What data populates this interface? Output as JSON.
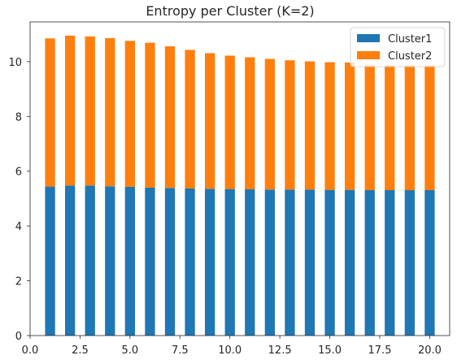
{
  "chart_data": {
    "type": "bar",
    "stacked": true,
    "title": "Entropy per Cluster (K=2)",
    "xlabel": "",
    "ylabel": "",
    "x": [
      1,
      2,
      3,
      4,
      5,
      6,
      7,
      8,
      9,
      10,
      11,
      12,
      13,
      14,
      15,
      16,
      17,
      18,
      19,
      20
    ],
    "xlim": [
      0,
      21
    ],
    "ylim": [
      0,
      11.45
    ],
    "xticks": [
      "0.0",
      "2.5",
      "5.0",
      "7.5",
      "10.0",
      "12.5",
      "15.0",
      "17.5",
      "20.0"
    ],
    "yticks": [
      "0",
      "2",
      "4",
      "6",
      "8",
      "10"
    ],
    "grid": false,
    "legend_position": "top-right",
    "series": [
      {
        "name": "Cluster1",
        "color": "#1f77b4",
        "values": [
          5.44,
          5.48,
          5.48,
          5.45,
          5.43,
          5.4,
          5.39,
          5.37,
          5.36,
          5.35,
          5.34,
          5.33,
          5.33,
          5.33,
          5.32,
          5.32,
          5.31,
          5.31,
          5.31,
          5.31
        ]
      },
      {
        "name": "Cluster2",
        "color": "#ff7f0e",
        "values": [
          5.41,
          5.47,
          5.44,
          5.41,
          5.33,
          5.29,
          5.17,
          5.06,
          4.95,
          4.87,
          4.82,
          4.77,
          4.72,
          4.68,
          4.66,
          4.65,
          4.58,
          4.57,
          4.56,
          4.56
        ]
      }
    ]
  }
}
